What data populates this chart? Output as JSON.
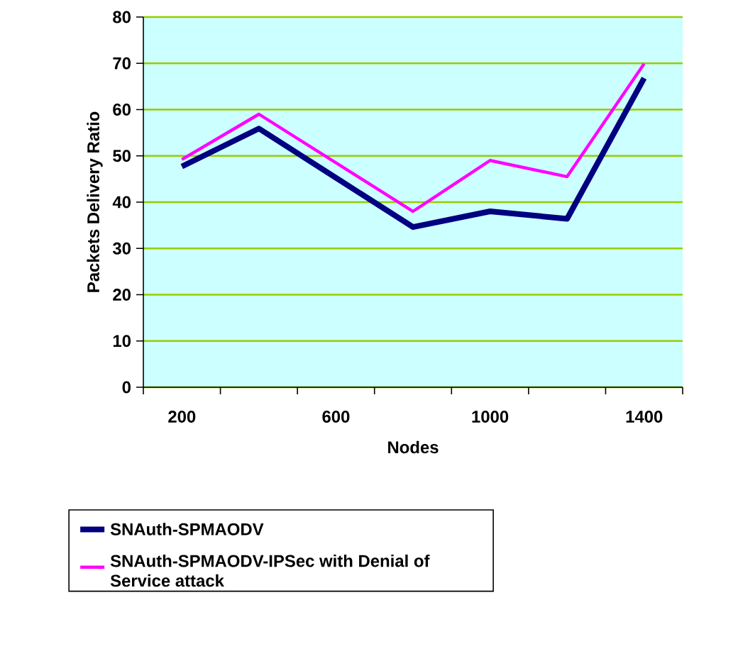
{
  "chart_data": {
    "type": "line",
    "xlabel": "Nodes",
    "ylabel": "Packets Delivery Ratio",
    "categories": [
      "200",
      null,
      "600",
      null,
      "1000",
      null,
      "1400"
    ],
    "series": [
      {
        "name": "SNAuth-SPMAODV",
        "color": "#000080",
        "values": [
          47.7,
          55.9,
          null,
          34.6,
          38.0,
          36.4,
          66.8
        ]
      },
      {
        "name": "SNAuth-SPMAODV-IPSec with Denial of Service attack",
        "color": "#ff00ff",
        "values": [
          49.2,
          59.0,
          null,
          38.0,
          49.0,
          45.5,
          69.9
        ]
      }
    ],
    "ylim": [
      0,
      80
    ],
    "yticks": [
      0,
      10,
      20,
      30,
      40,
      50,
      60,
      70,
      80
    ],
    "grid": "y",
    "legend": "bottom",
    "marker": "none",
    "line_style": "solid"
  }
}
